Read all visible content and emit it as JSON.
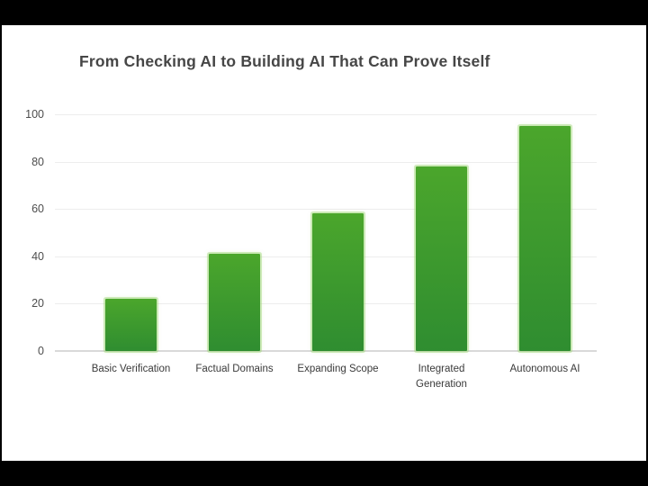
{
  "chart_data": {
    "type": "bar",
    "title": "From Checking AI to Building AI That Can Prove Itself",
    "categories": [
      "Basic Verification",
      "Factual Domains",
      "Expanding Scope",
      "Integrated\nGeneration",
      "Autonomous AI"
    ],
    "values": [
      22,
      41,
      58,
      78,
      95
    ],
    "xlabel": "",
    "ylabel": "",
    "ylim": [
      0,
      100
    ],
    "yticks": [
      0,
      20,
      40,
      60,
      80,
      100
    ],
    "grid": "horizontal",
    "legend": "none",
    "colors": {
      "bar_gradient_top": "#4ba62c",
      "bar_gradient_bottom": "#2f8d30",
      "bar_halo": "#a0d678",
      "gridline": "#ededed",
      "axis_line": "#d9d9d9",
      "title_text": "#464646",
      "tick_text": "#4d4d4d",
      "label_text": "#3a3a3a",
      "background": "#ffffff",
      "letterbox": "#000000"
    }
  }
}
